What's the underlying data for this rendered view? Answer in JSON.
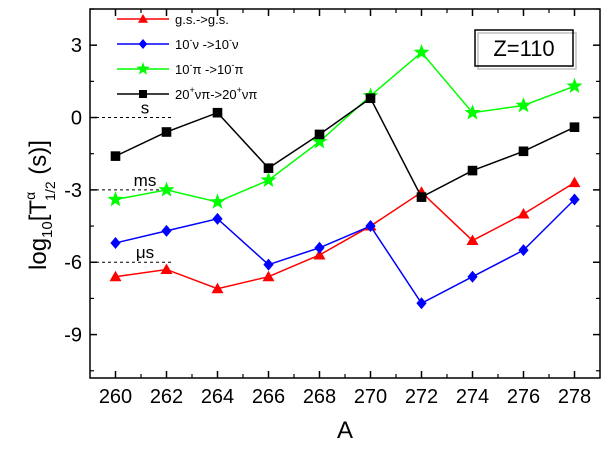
{
  "chart_data": {
    "type": "line",
    "xlabel": "A",
    "ylabel_main": "log",
    "ylabel_sub": "10",
    "ylabel_bracket_open": "[T",
    "ylabel_sup": "α",
    "ylabel_sub2": "1/2",
    "ylabel_tail": " (s)]",
    "annotation_box": "Z=110",
    "xlim": [
      259,
      279
    ],
    "ylim": [
      -10.8,
      4.5
    ],
    "x_ticks": [
      260,
      262,
      264,
      266,
      268,
      270,
      272,
      274,
      276,
      278
    ],
    "y_ticks": [
      3,
      0,
      -3,
      -6,
      -9
    ],
    "y_tick_labels": [
      "3",
      "0",
      "-3",
      "-6",
      "-9"
    ],
    "x": [
      260,
      262,
      264,
      266,
      268,
      270,
      272,
      274,
      276,
      278
    ],
    "series": [
      {
        "name": "g.s.->g.s.",
        "legend_parts": [
          "g.s.->g.s."
        ],
        "color": "#ff0000",
        "marker": "triangle",
        "values": [
          -6.6,
          -6.3,
          -7.1,
          -6.6,
          -5.7,
          -4.5,
          -3.1,
          -5.1,
          -4.0,
          -2.7
        ]
      },
      {
        "name": "10⁻ν->10⁻ν",
        "legend_parts": [
          "10",
          "-",
          "ν ->10",
          "-",
          "ν"
        ],
        "color": "#0000ff",
        "marker": "diamond",
        "values": [
          -5.2,
          -4.7,
          -4.2,
          -6.1,
          -5.4,
          -4.5,
          -7.7,
          -6.6,
          -5.5,
          -3.4
        ]
      },
      {
        "name": "10⁻π->10⁻π",
        "legend_parts": [
          "10",
          "-",
          "π ->10",
          "-",
          "π"
        ],
        "color": "#00ff00",
        "marker": "star",
        "values": [
          -3.4,
          -3.0,
          -3.5,
          -2.6,
          -1.0,
          0.9,
          2.7,
          0.2,
          0.5,
          1.3
        ]
      },
      {
        "name": "20⁺νπ->20⁺νπ",
        "legend_parts": [
          "20",
          "+",
          "νπ->20",
          "+",
          "νπ"
        ],
        "color": "#000000",
        "marker": "square",
        "values": [
          -1.6,
          -0.6,
          0.2,
          -2.1,
          -0.7,
          0.8,
          -3.3,
          -2.2,
          -1.4,
          -0.4
        ]
      }
    ],
    "reference_lines": [
      {
        "label": "s",
        "y": 0
      },
      {
        "label": "ms",
        "y": -3
      },
      {
        "label": "μs",
        "y": -6
      }
    ],
    "grid": false,
    "legend_position": "top-left"
  }
}
